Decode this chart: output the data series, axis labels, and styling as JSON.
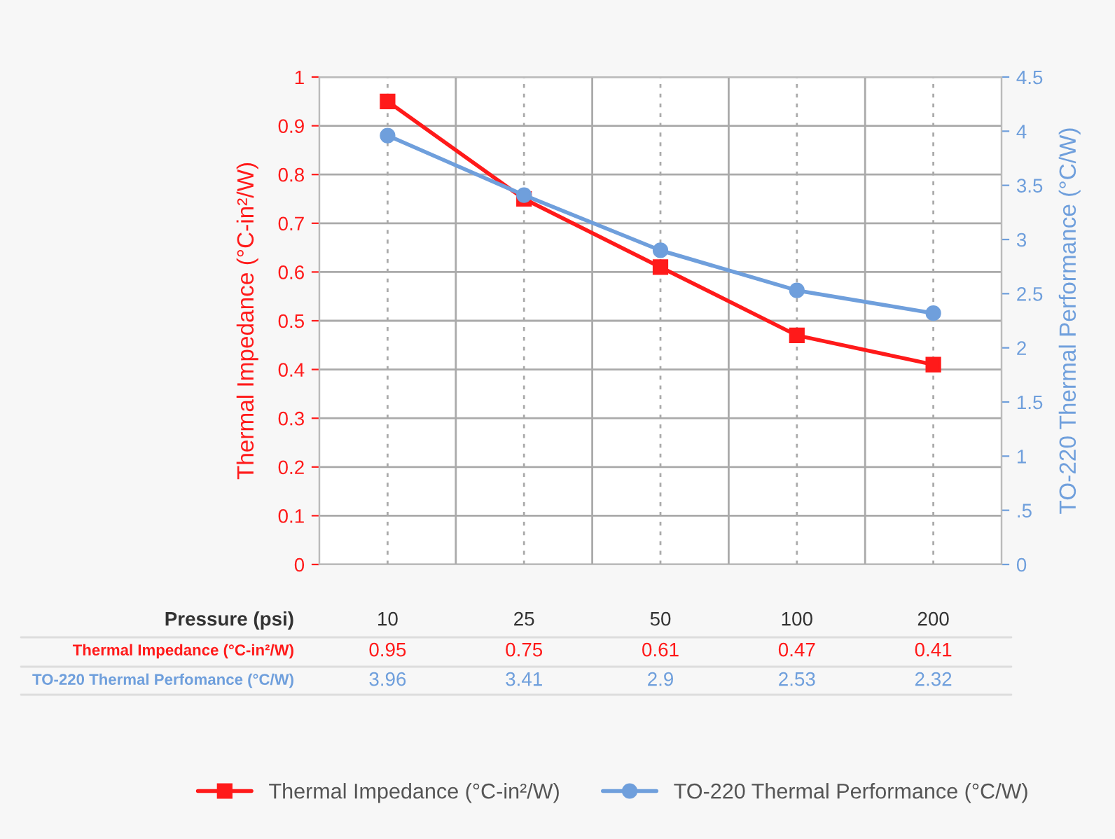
{
  "chart_data": {
    "type": "line",
    "categories": [
      "10",
      "25",
      "50",
      "100",
      "200"
    ],
    "xlabel": "Pressure (psi)",
    "ylabel": "Thermal Impedance (°C-in²/W)",
    "y2label": "TO-220 Thermal Performance (°C/W)",
    "series": [
      {
        "name": "Thermal Impedance (°C-in²/W)",
        "color": "#ff1a1a",
        "marker": "square",
        "values": [
          0.95,
          0.75,
          0.61,
          0.47,
          0.41
        ]
      },
      {
        "name": "TO-220 Thermal Performance (°C/W)",
        "color": "#6f9fdc",
        "marker": "circle",
        "axis": "y2",
        "values": [
          3.96,
          3.41,
          2.9,
          2.53,
          2.32
        ]
      }
    ],
    "ylim": [
      0,
      1
    ],
    "yticks": [
      0,
      0.1,
      0.2,
      0.3,
      0.4,
      0.5,
      0.6,
      0.7,
      0.8,
      0.9,
      1
    ],
    "y2lim": [
      0,
      4.5
    ],
    "y2ticks": [
      0,
      {
        "value": 0.5,
        "label": ".5"
      },
      1,
      1.5,
      2,
      2.5,
      3,
      3.5,
      4,
      4.5
    ],
    "data_labels": true,
    "annotations": [
      "Thermal Impedance (°C-in²/W)",
      "TO-220 Thermal Perfomance (°C/W)"
    ],
    "grid": true,
    "legend": "bottom",
    "line_style": "solid"
  }
}
